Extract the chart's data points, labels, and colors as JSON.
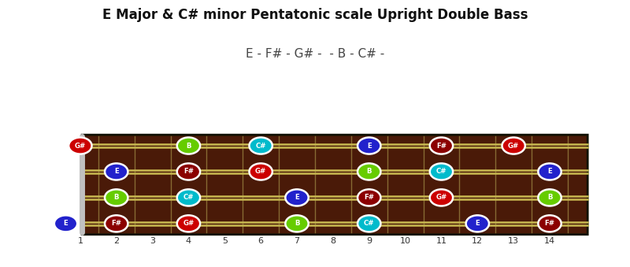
{
  "title": "E Major & C# minor Pentatonic scale Upright Double Bass",
  "subtitle": "E - F# - G# -  - B - C# -",
  "fret_max": 14,
  "num_strings": 4,
  "fretboard_color": "#4a1a08",
  "string_color": "#c8b850",
  "fret_color": "#b0a050",
  "nut_color": "#c0c0c0",
  "background_color": "#ffffff",
  "notes": [
    {
      "string": 3,
      "fret": 1,
      "note": "G#",
      "color": "#cc0000"
    },
    {
      "string": 3,
      "fret": 4,
      "note": "B",
      "color": "#66cc00"
    },
    {
      "string": 3,
      "fret": 6,
      "note": "C#",
      "color": "#00bbcc"
    },
    {
      "string": 3,
      "fret": 9,
      "note": "E",
      "color": "#2222cc"
    },
    {
      "string": 3,
      "fret": 11,
      "note": "F#",
      "color": "#8b0000"
    },
    {
      "string": 3,
      "fret": 13,
      "note": "G#",
      "color": "#cc0000"
    },
    {
      "string": 2,
      "fret": 2,
      "note": "E",
      "color": "#2222cc"
    },
    {
      "string": 2,
      "fret": 4,
      "note": "F#",
      "color": "#8b0000"
    },
    {
      "string": 2,
      "fret": 6,
      "note": "G#",
      "color": "#cc0000"
    },
    {
      "string": 2,
      "fret": 9,
      "note": "B",
      "color": "#66cc00"
    },
    {
      "string": 2,
      "fret": 11,
      "note": "C#",
      "color": "#00bbcc"
    },
    {
      "string": 2,
      "fret": 14,
      "note": "E",
      "color": "#2222cc"
    },
    {
      "string": 1,
      "fret": 2,
      "note": "B",
      "color": "#66cc00"
    },
    {
      "string": 1,
      "fret": 4,
      "note": "C#",
      "color": "#00bbcc"
    },
    {
      "string": 1,
      "fret": 7,
      "note": "E",
      "color": "#2222cc"
    },
    {
      "string": 1,
      "fret": 9,
      "note": "F#",
      "color": "#8b0000"
    },
    {
      "string": 1,
      "fret": 11,
      "note": "G#",
      "color": "#cc0000"
    },
    {
      "string": 1,
      "fret": 14,
      "note": "B",
      "color": "#66cc00"
    },
    {
      "string": 0,
      "fret": 0,
      "note": "E",
      "color": "#2222cc"
    },
    {
      "string": 0,
      "fret": 2,
      "note": "F#",
      "color": "#8b0000"
    },
    {
      "string": 0,
      "fret": 4,
      "note": "G#",
      "color": "#cc0000"
    },
    {
      "string": 0,
      "fret": 7,
      "note": "B",
      "color": "#66cc00"
    },
    {
      "string": 0,
      "fret": 9,
      "note": "C#",
      "color": "#00bbcc"
    },
    {
      "string": 0,
      "fret": 12,
      "note": "E",
      "color": "#2222cc"
    },
    {
      "string": 0,
      "fret": 14,
      "note": "F#",
      "color": "#8b0000"
    }
  ]
}
